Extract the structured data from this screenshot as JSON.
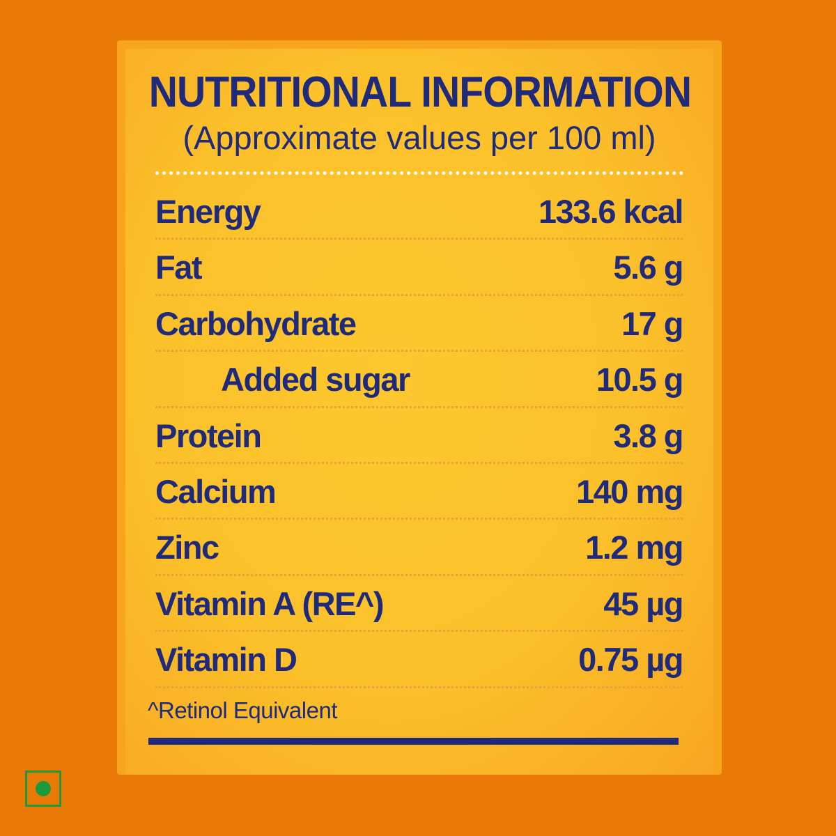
{
  "title": "NUTRITIONAL INFORMATION",
  "subtitle": "(Approximate values per 100 ml)",
  "rows": [
    {
      "label": "Energy",
      "value": "133.6 kcal"
    },
    {
      "label": "Fat",
      "value": "5.6 g"
    },
    {
      "label": "Carbohydrate",
      "value": "17 g"
    },
    {
      "label": "Added sugar",
      "value": "10.5 g"
    },
    {
      "label": "Protein",
      "value": "3.8 g"
    },
    {
      "label": "Calcium",
      "value": "140 mg"
    },
    {
      "label": "Zinc",
      "value": "1.2 mg"
    },
    {
      "label": "Vitamin A (RE^)",
      "value": "45 µg"
    },
    {
      "label": "Vitamin D",
      "value": "0.75 µg"
    }
  ],
  "footnote": "^Retinol Equivalent",
  "colors": {
    "background": "#e97a07",
    "panel": "#fbc02a",
    "text": "#1f2a7a",
    "veg_mark": "#1e9a3a"
  },
  "icons": {
    "veg_mark": "vegetarian-mark-icon"
  }
}
